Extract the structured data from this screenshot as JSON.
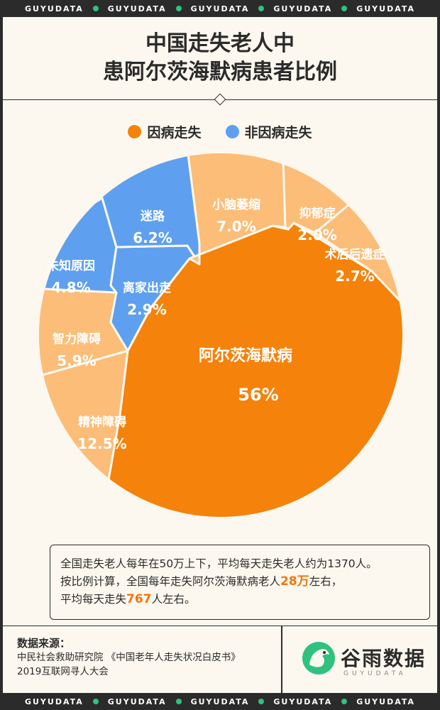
{
  "band_text": "GUYUDATA",
  "title_line1": "中国走失老人中",
  "title_line2": "患阿尔茨海默病患者比例",
  "legend": [
    {
      "label": "因病走失",
      "color": "#f5820a"
    },
    {
      "label": "非因病走失",
      "color": "#5ea0ef"
    }
  ],
  "chart_data": {
    "type": "pie",
    "title": "中国走失老人中患阿尔茨海默病患者比例",
    "groups": [
      "因病走失",
      "非因病走失"
    ],
    "slices": [
      {
        "label": "阿尔茨海默病",
        "value_label": "56%",
        "value": 56,
        "group": "因病走失",
        "color": "#f5820a"
      },
      {
        "label": "精神障碍",
        "value_label": "12.5%",
        "value": 12.5,
        "group": "因病走失",
        "color": "#fbbd78"
      },
      {
        "label": "智力障碍",
        "value_label": "5.9%",
        "value": 5.9,
        "group": "因病走失",
        "color": "#fbbd78"
      },
      {
        "label": "未知原因",
        "value_label": "4.8%",
        "value": 4.8,
        "group": "非因病走失",
        "color": "#5ea0ef"
      },
      {
        "label": "离家出走",
        "value_label": "2.9%",
        "value": 2.9,
        "group": "非因病走失",
        "color": "#5ea0ef"
      },
      {
        "label": "迷路",
        "value_label": "6.2%",
        "value": 6.2,
        "group": "非因病走失",
        "color": "#5ea0ef"
      },
      {
        "label": "小脑萎缩",
        "value_label": "7.0%",
        "value": 7.0,
        "group": "因病走失",
        "color": "#fbbd78"
      },
      {
        "label": "抑郁症",
        "value_label": "2.0%",
        "value": 2.0,
        "group": "因病走失",
        "color": "#fbbd78"
      },
      {
        "label": "术后后遗症",
        "value_label": "2.7%",
        "value": 2.7,
        "group": "因病走失",
        "color": "#fbbd78"
      }
    ]
  },
  "callout": {
    "line1": "全国走失老人每年在50万上下，平均每天走失老人约为1370人。",
    "line2_pre": "按比例计算，全国每年走失阿尔茨海默病老人",
    "line2_hl": "28万",
    "line2_post": "左右，",
    "line3_pre": "平均每天走失",
    "line3_hl": "767",
    "line3_post": "人左右。"
  },
  "source": {
    "label": "数据来源：",
    "line1": "中民社会救助研究院 《中国老年人走失状况白皮书》",
    "line2": "2019互联网寻人大会"
  },
  "logo": {
    "name": "谷雨数据",
    "sub": "GUYUDATA"
  }
}
